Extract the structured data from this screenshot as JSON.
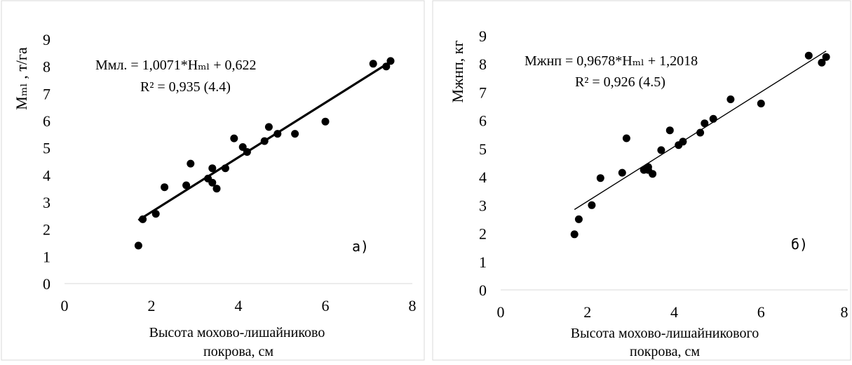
{
  "chart_data": [
    {
      "type": "scatter",
      "ylabel": "Мₘₗ , т/га",
      "xlabel_lines": [
        "Высота мохово-лишайниково",
        "покрова, см"
      ],
      "equation": "Ммл. = 1,0071*Нₘₗ + 0,622",
      "r2": "R² = 0,935   (4.4)",
      "tag": "а)",
      "xlim": [
        0,
        8
      ],
      "ylim": [
        0,
        9
      ],
      "xticks": [
        0,
        2,
        4,
        6,
        8
      ],
      "yticks": [
        0,
        1,
        2,
        3,
        4,
        5,
        6,
        7,
        8,
        9
      ],
      "grid": false,
      "trendline": {
        "slope": 1.0071,
        "intercept": 0.622,
        "x_range": [
          1.7,
          7.5
        ]
      },
      "points": [
        {
          "x": 1.7,
          "y": 1.4
        },
        {
          "x": 1.8,
          "y": 2.37
        },
        {
          "x": 2.1,
          "y": 2.57
        },
        {
          "x": 2.3,
          "y": 3.55
        },
        {
          "x": 2.8,
          "y": 3.62
        },
        {
          "x": 2.9,
          "y": 4.42
        },
        {
          "x": 3.3,
          "y": 3.87
        },
        {
          "x": 3.4,
          "y": 3.72
        },
        {
          "x": 3.4,
          "y": 4.25
        },
        {
          "x": 3.5,
          "y": 3.5
        },
        {
          "x": 3.7,
          "y": 4.25
        },
        {
          "x": 3.9,
          "y": 5.35
        },
        {
          "x": 4.1,
          "y": 5.03
        },
        {
          "x": 4.2,
          "y": 4.85
        },
        {
          "x": 4.6,
          "y": 5.25
        },
        {
          "x": 4.7,
          "y": 5.77
        },
        {
          "x": 4.9,
          "y": 5.52
        },
        {
          "x": 5.3,
          "y": 5.52
        },
        {
          "x": 6.0,
          "y": 5.97
        },
        {
          "x": 7.1,
          "y": 8.1
        },
        {
          "x": 7.4,
          "y": 8.0
        },
        {
          "x": 7.5,
          "y": 8.2
        }
      ]
    },
    {
      "type": "scatter",
      "ylabel": "Мжнп, кг",
      "xlabel_lines": [
        "Высота мохово-лишайникового",
        "покрова, см"
      ],
      "equation": "Мжнп = 0,9678*Нₘₗ + 1,2018",
      "r2": "R² = 0,926   (4.5)",
      "tag": "б)",
      "xlim": [
        0,
        8
      ],
      "ylim": [
        0,
        9
      ],
      "xticks": [
        0,
        2,
        4,
        6,
        8
      ],
      "yticks": [
        0,
        1,
        2,
        3,
        4,
        5,
        6,
        7,
        8,
        9
      ],
      "grid": false,
      "trendline": {
        "slope": 0.9678,
        "intercept": 1.2018,
        "x_range": [
          1.7,
          7.5
        ]
      },
      "points": [
        {
          "x": 1.7,
          "y": 1.97
        },
        {
          "x": 1.8,
          "y": 2.5
        },
        {
          "x": 2.1,
          "y": 3.0
        },
        {
          "x": 2.3,
          "y": 3.96
        },
        {
          "x": 2.8,
          "y": 4.15
        },
        {
          "x": 2.9,
          "y": 5.37
        },
        {
          "x": 3.3,
          "y": 4.25
        },
        {
          "x": 3.4,
          "y": 4.35
        },
        {
          "x": 3.4,
          "y": 4.25
        },
        {
          "x": 3.5,
          "y": 4.11
        },
        {
          "x": 3.7,
          "y": 4.95
        },
        {
          "x": 3.9,
          "y": 5.65
        },
        {
          "x": 4.1,
          "y": 5.13
        },
        {
          "x": 4.2,
          "y": 5.25
        },
        {
          "x": 4.6,
          "y": 5.57
        },
        {
          "x": 4.7,
          "y": 5.9
        },
        {
          "x": 4.9,
          "y": 6.06
        },
        {
          "x": 5.3,
          "y": 6.75
        },
        {
          "x": 6.0,
          "y": 6.6
        },
        {
          "x": 7.1,
          "y": 8.3
        },
        {
          "x": 7.4,
          "y": 8.05
        },
        {
          "x": 7.5,
          "y": 8.25
        }
      ]
    }
  ]
}
